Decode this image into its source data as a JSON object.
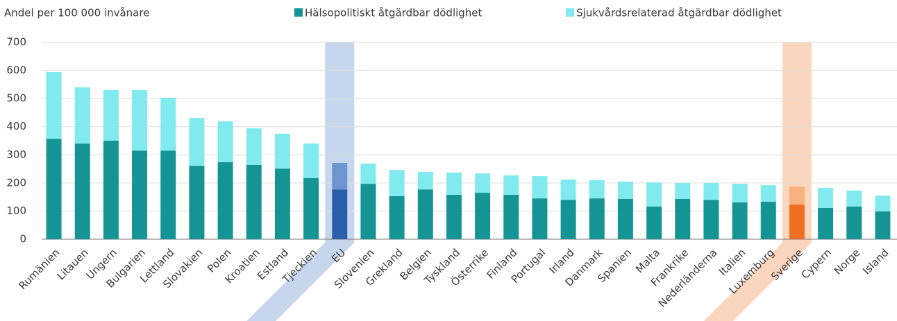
{
  "chart_data": {
    "type": "stacked_bar",
    "y_axis_label": "Andel per 100 000 invånare",
    "categories": [
      "Rumänien",
      "Litauen",
      "Ungern",
      "Bulgarien",
      "Lettland",
      "Slovakien",
      "Polen",
      "Kroatien",
      "Estland",
      "Tjeckien",
      "EU",
      "Slovenien",
      "Grekland",
      "Belgien",
      "Tyskland",
      "Österrike",
      "Finland",
      "Portugal",
      "Irland",
      "Danmark",
      "Spanien",
      "Malta",
      "Frankrike",
      "Nederländerna",
      "Italien",
      "Luxemburg",
      "Sverige",
      "Cypern",
      "Norge",
      "Island"
    ],
    "series": [
      {
        "name": "Hälsopolitiskt åtgärdbar dödlighet",
        "color": "#149494",
        "highlight_colors": {
          "EU": "#2b5fab",
          "Sverige": "#f07023"
        },
        "values": [
          357,
          340,
          350,
          315,
          315,
          261,
          274,
          264,
          251,
          217,
          177,
          197,
          153,
          177,
          158,
          165,
          158,
          145,
          140,
          145,
          143,
          116,
          143,
          140,
          131,
          133,
          123,
          111,
          116,
          99
        ]
      },
      {
        "name": "Sjukvårdsrelaterad åtgärdbar dödlighet",
        "color": "#80eaee",
        "highlight_colors": {
          "EU": "#6d96d1",
          "Sverige": "#f8b07f"
        },
        "values": [
          237,
          200,
          180,
          215,
          188,
          170,
          145,
          130,
          124,
          123,
          94,
          72,
          93,
          62,
          79,
          69,
          69,
          79,
          72,
          65,
          62,
          86,
          57,
          60,
          66,
          59,
          64,
          71,
          57,
          56
        ]
      }
    ],
    "highlight_band_colors": {
      "EU": "#c6d7ed",
      "Sverige": "#fad6bf"
    },
    "ylim": [
      0,
      700
    ],
    "yticks": [
      0,
      100,
      200,
      300,
      400,
      500,
      600,
      700
    ],
    "grid": true
  }
}
